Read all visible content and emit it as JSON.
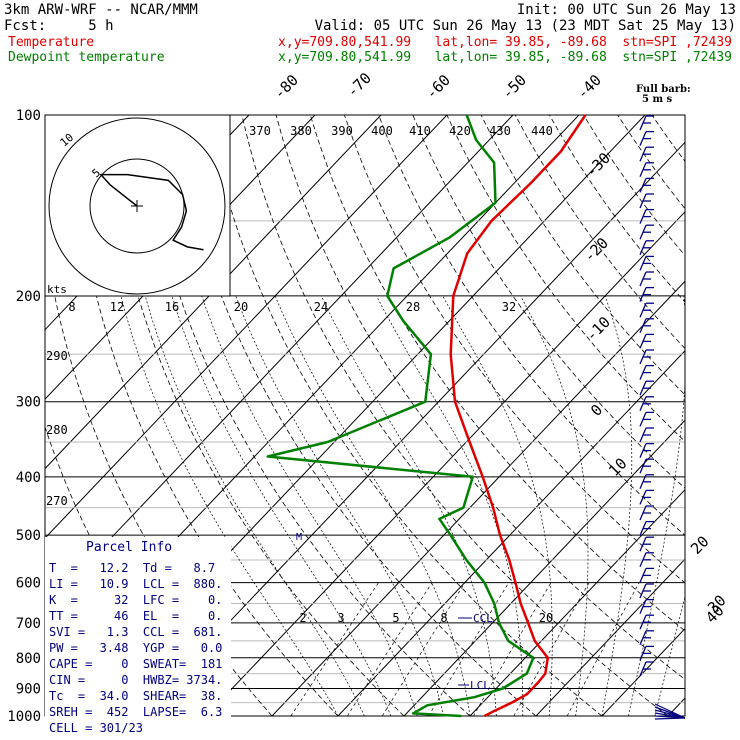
{
  "header": {
    "line1_left": "3km ARW-WRF -- NCAR/MMM",
    "line1_right": "Init: 00 UTC Sun 26 May 13",
    "line2_left": "Fcst:     5 h",
    "line2_right": "Valid: 05 UTC Sun 26 May 13 (23 MDT Sat 25 May 13)",
    "line3_left": "Temperature",
    "line3_right": "x,y=709.80,541.99   lat,lon= 39.85, -89.68  stn=SPI ,72439",
    "line4_left": "Dewpoint temperature",
    "line4_right": "x,y=709.80,541.99   lat,lon= 39.85, -89.68  stn=SPI ,72439",
    "colors": {
      "text": "#000000",
      "temperature": "#e00000",
      "dewpoint": "#008000",
      "panel_text": "#000080"
    }
  },
  "wind_key": {
    "line1": "Full barb:",
    "line2": "5 m s"
  },
  "parcel_info": {
    "title": "Parcel Info",
    "rows": [
      "T  =   12.2  Td =   8.7",
      "LI =   10.9  LCL =  880.",
      "K  =     32  LFC =    0.",
      "TT =     46  EL  =    0.",
      "SVI =   1.3  CCL =  681.",
      "PW =   3.48  YGP =   0.0",
      "CAPE =    0  SWEAT=  181",
      "CIN =     0  HWBZ= 3734.",
      "Tc  =  34.0  SHEAR=  38.",
      "SREH =  452  LAPSE=  6.3",
      "CELL = 301/23"
    ]
  },
  "hodograph": {
    "units": "kts",
    "ring_labels": [
      "5",
      "10"
    ]
  },
  "chart_data": {
    "type": "skew-T log-P",
    "pressure_axis": {
      "ticks": [
        100,
        200,
        300,
        400,
        500,
        600,
        700,
        800,
        900,
        1000
      ],
      "log_scale": true,
      "range": [
        100,
        1000
      ]
    },
    "temperature_axis_labels": [
      {
        "text": "-80"
      },
      {
        "text": "-70"
      },
      {
        "text": "-60"
      },
      {
        "text": "-50"
      },
      {
        "text": "-40"
      },
      {
        "text": "-30"
      },
      {
        "text": "-20"
      },
      {
        "text": "-10"
      },
      {
        "text": "0"
      },
      {
        "text": "10"
      },
      {
        "text": "20"
      },
      {
        "text": "30"
      },
      {
        "text": "40"
      }
    ],
    "theta_labels": [
      "370",
      "380",
      "390",
      "400",
      "410",
      "420",
      "430",
      "440"
    ],
    "theta_e_labels": [
      "290",
      "280",
      "270"
    ],
    "precipitable_water_labels": [
      "8",
      "12",
      "16",
      "20",
      "24",
      "28",
      "32"
    ],
    "mixing_ratio_labels": [
      "2",
      "3",
      "5",
      "8",
      "20"
    ],
    "annotations": {
      "ccl": "CCL",
      "lcl": "LCL",
      "lfc_marker": "M"
    },
    "series": [
      {
        "name": "Temperature",
        "color": "#e00000",
        "points": [
          [
            1000,
            12.2
          ],
          [
            980,
            13.0
          ],
          [
            950,
            14.4
          ],
          [
            920,
            15.5
          ],
          [
            880,
            15.5
          ],
          [
            850,
            15.3
          ],
          [
            800,
            13.4
          ],
          [
            750,
            9.0
          ],
          [
            700,
            5.4
          ],
          [
            650,
            1.5
          ],
          [
            600,
            -2.3
          ],
          [
            550,
            -6.5
          ],
          [
            500,
            -11.5
          ],
          [
            450,
            -16.5
          ],
          [
            400,
            -22.5
          ],
          [
            350,
            -29.5
          ],
          [
            300,
            -37.5
          ],
          [
            250,
            -45.0
          ],
          [
            200,
            -53.0
          ],
          [
            170,
            -57.0
          ],
          [
            150,
            -58.0
          ],
          [
            130,
            -57.5
          ],
          [
            115,
            -57.5
          ],
          [
            100,
            -59.0
          ]
        ]
      },
      {
        "name": "Dewpoint temperature",
        "color": "#008000",
        "points": [
          [
            1000,
            8.7
          ],
          [
            990,
            1.0
          ],
          [
            960,
            2.0
          ],
          [
            930,
            8.0
          ],
          [
            900,
            11.0
          ],
          [
            850,
            12.5
          ],
          [
            800,
            11.2
          ],
          [
            750,
            5.0
          ],
          [
            700,
            1.0
          ],
          [
            650,
            -2.5
          ],
          [
            600,
            -7.0
          ],
          [
            550,
            -13.0
          ],
          [
            500,
            -19.0
          ],
          [
            470,
            -23.0
          ],
          [
            450,
            -21.0
          ],
          [
            400,
            -24.0
          ],
          [
            370,
            -58.0
          ],
          [
            350,
            -51.0
          ],
          [
            300,
            -42.0
          ],
          [
            250,
            -48.0
          ],
          [
            220,
            -57.0
          ],
          [
            200,
            -63.0
          ],
          [
            180,
            -66.0
          ],
          [
            160,
            -62.0
          ],
          [
            140,
            -60.0
          ],
          [
            120,
            -66.0
          ],
          [
            110,
            -72.0
          ],
          [
            100,
            -77.0
          ]
        ]
      }
    ],
    "hodograph_trace": [
      [
        0,
        0
      ],
      [
        -28,
        22
      ],
      [
        -38,
        33
      ],
      [
        -10,
        33
      ],
      [
        33,
        27
      ],
      [
        48,
        12
      ],
      [
        52,
        -5
      ],
      [
        47,
        -22
      ],
      [
        38,
        -36
      ],
      [
        53,
        -43
      ],
      [
        70,
        -46
      ]
    ],
    "grid": true
  }
}
